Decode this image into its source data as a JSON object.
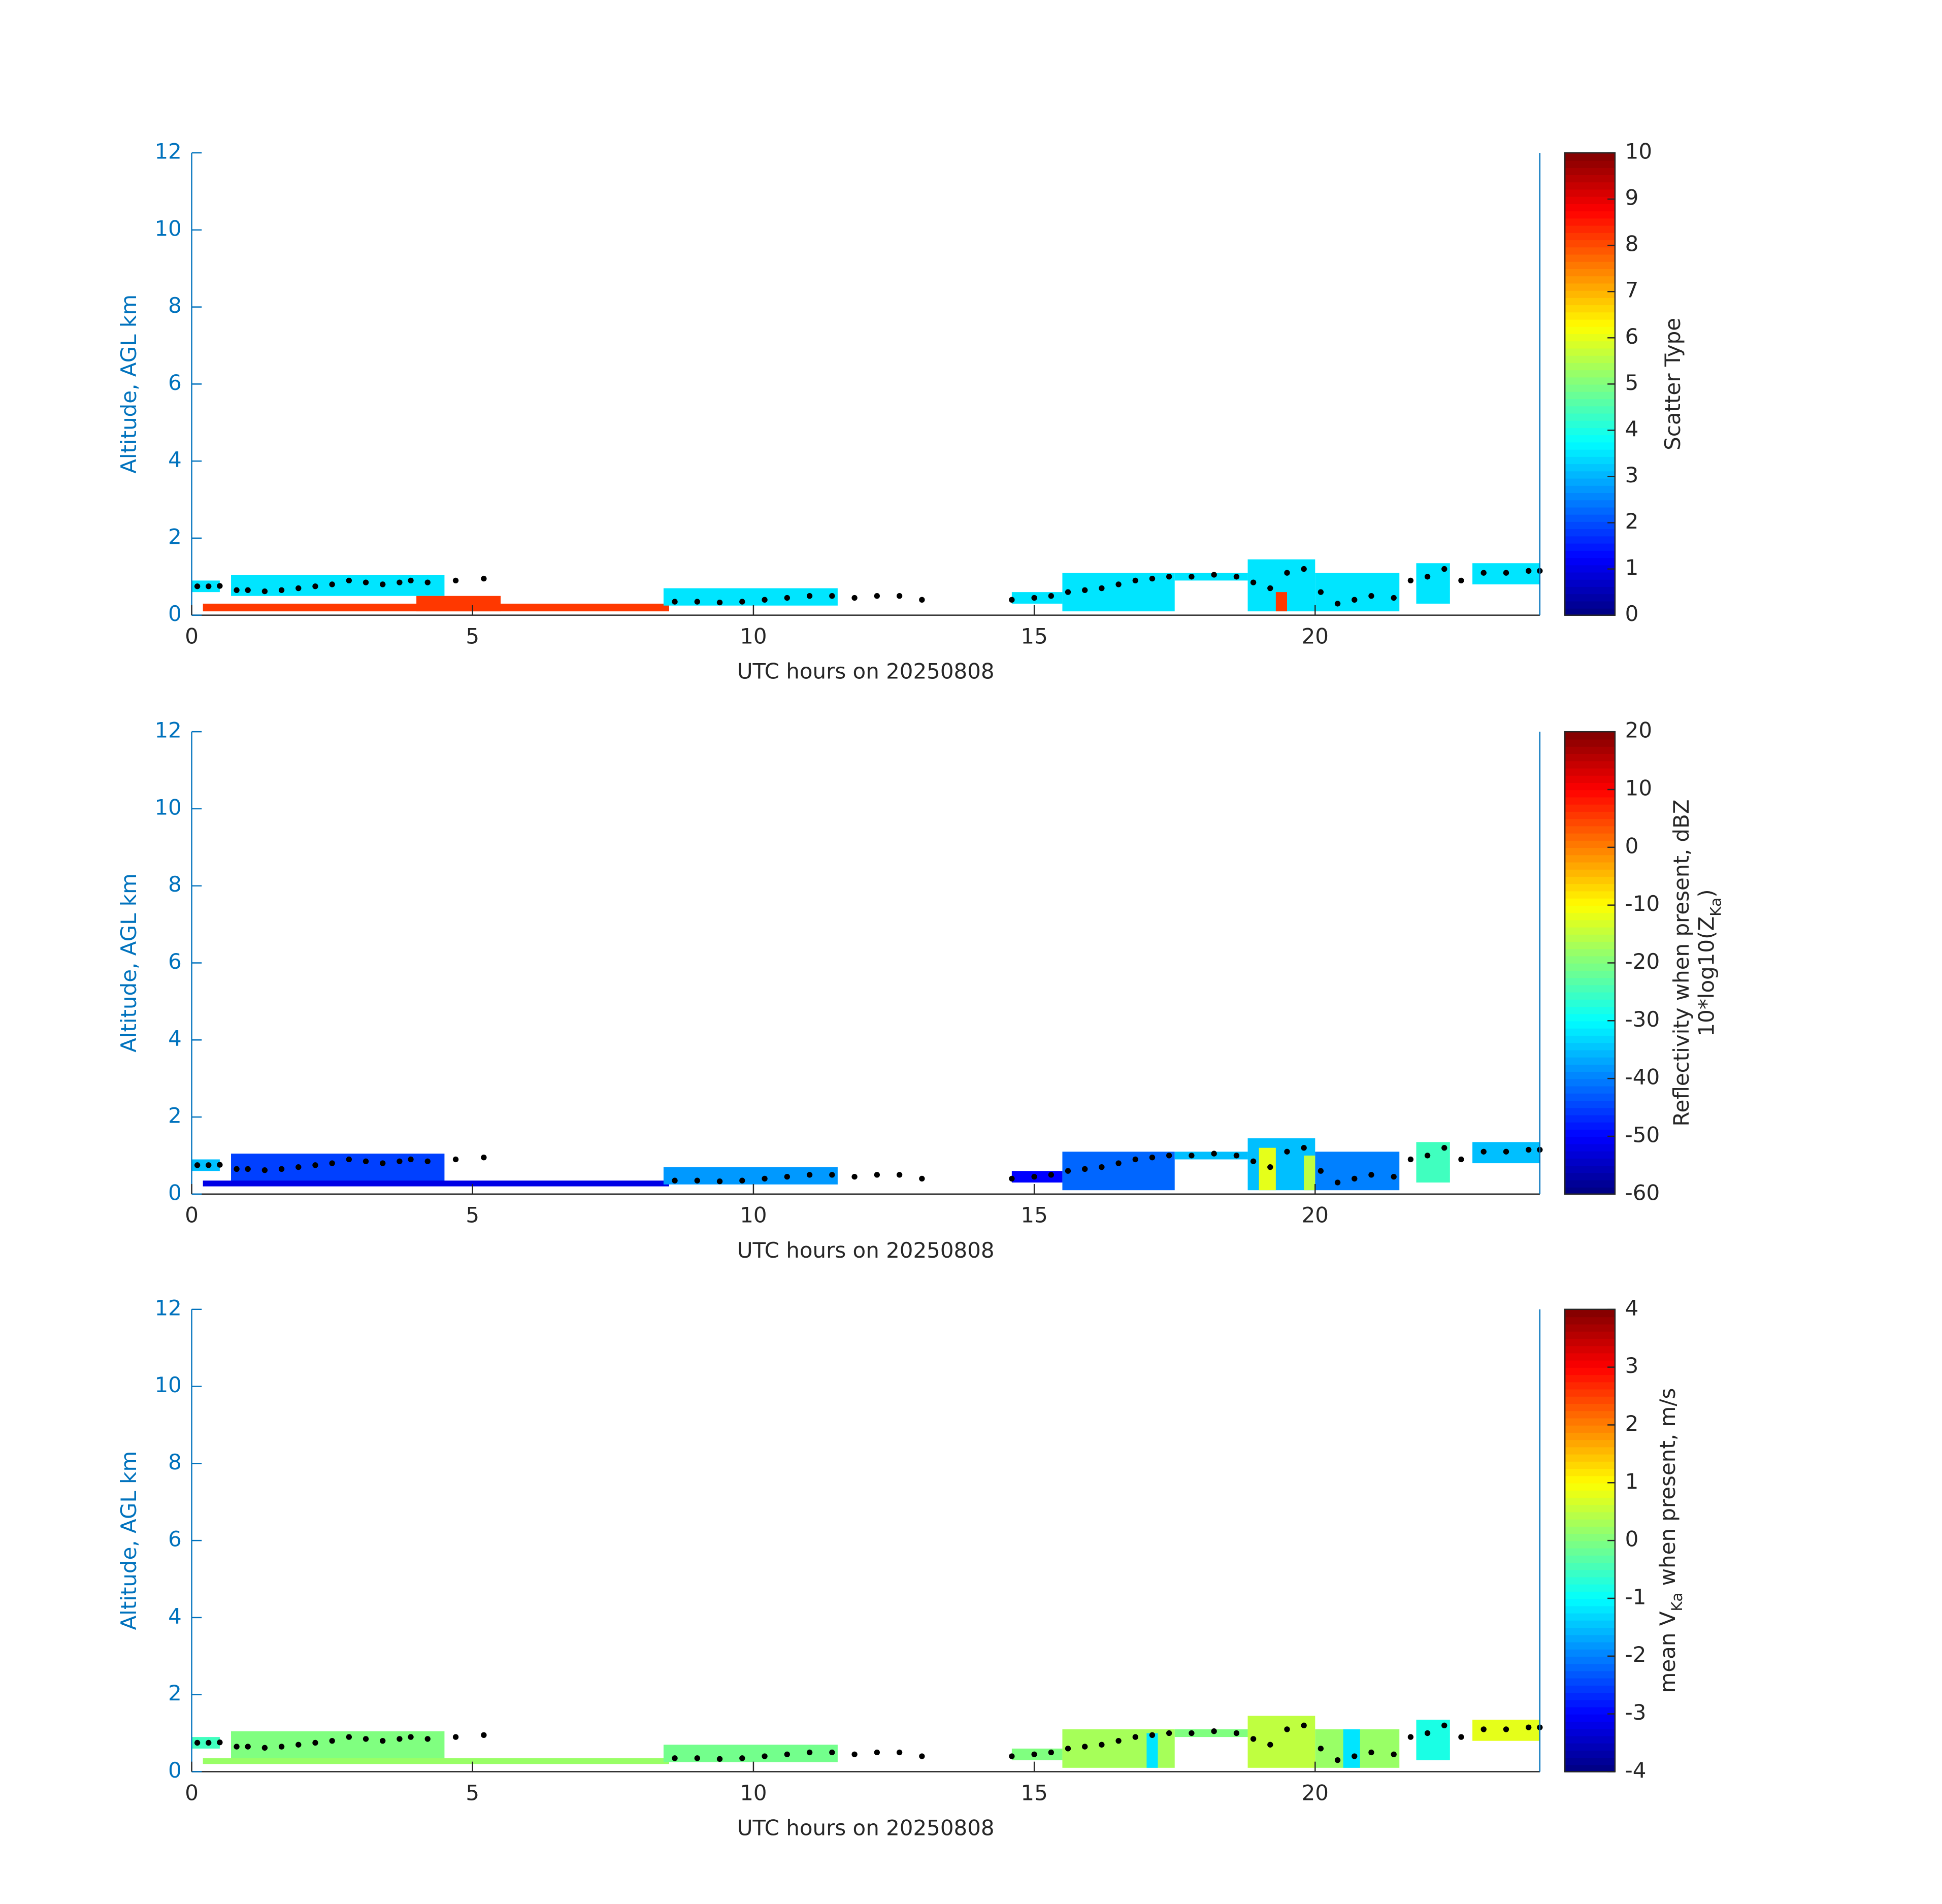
{
  "chart_data": [
    {
      "type": "time-height",
      "ylabel": "Altitude, AGL km",
      "xlabel": "UTC hours on 20250808",
      "xlim": [
        0,
        24
      ],
      "xticks": [
        0,
        5,
        10,
        15,
        20
      ],
      "ylim": [
        0,
        12
      ],
      "yticks": [
        0,
        2,
        4,
        6,
        8,
        10,
        12
      ],
      "colorbar": {
        "label": [
          "Scatter Type"
        ],
        "clim": [
          0,
          10
        ],
        "ticks": [
          0,
          1,
          2,
          3,
          4,
          5,
          6,
          7,
          8,
          9,
          10
        ],
        "colormap": "jet"
      },
      "cells": {
        "x_start": [
          0,
          0.7,
          0.2,
          4.0,
          8.4,
          14.6,
          15.5,
          17.5,
          18.8,
          20.0,
          21.8,
          22.8,
          19.3
        ],
        "x_end": [
          0.5,
          4.5,
          8.5,
          5.5,
          11.5,
          15.5,
          17.5,
          18.8,
          20.0,
          21.5,
          22.4,
          24,
          19.5
        ],
        "y_bottom": [
          0.6,
          0.5,
          0.1,
          0.1,
          0.25,
          0.3,
          0.1,
          0.9,
          0.1,
          0.1,
          0.3,
          0.8,
          0.1
        ],
        "y_top": [
          0.9,
          1.05,
          0.3,
          0.5,
          0.7,
          0.6,
          1.1,
          1.1,
          1.45,
          1.1,
          1.35,
          1.35,
          0.6
        ],
        "values": [
          3.5,
          3.5,
          8.2,
          8.2,
          3.5,
          3.5,
          3.5,
          3.5,
          3.5,
          3.5,
          3.5,
          3.5,
          8.2
        ]
      },
      "points": {
        "color": "#000000",
        "x": [
          0.1,
          0.3,
          0.5,
          0.8,
          1.0,
          1.3,
          1.6,
          1.9,
          2.2,
          2.5,
          2.8,
          3.1,
          3.4,
          3.7,
          3.9,
          4.2,
          4.7,
          5.2,
          8.6,
          9.0,
          9.4,
          9.8,
          10.2,
          10.6,
          11.0,
          11.4,
          11.8,
          12.2,
          12.6,
          13.0,
          14.6,
          15.0,
          15.3,
          15.6,
          15.9,
          16.2,
          16.5,
          16.8,
          17.1,
          17.4,
          17.8,
          18.2,
          18.6,
          18.9,
          19.2,
          19.5,
          19.8,
          20.1,
          20.4,
          20.7,
          21.0,
          21.4,
          21.7,
          22.0,
          22.3,
          22.6,
          23.0,
          23.4,
          23.8,
          24.0
        ],
        "y": [
          0.75,
          0.75,
          0.76,
          0.65,
          0.65,
          0.62,
          0.65,
          0.7,
          0.75,
          0.8,
          0.9,
          0.85,
          0.8,
          0.85,
          0.9,
          0.85,
          0.9,
          0.95,
          0.35,
          0.35,
          0.33,
          0.35,
          0.4,
          0.45,
          0.5,
          0.5,
          0.45,
          0.5,
          0.5,
          0.4,
          0.4,
          0.45,
          0.5,
          0.6,
          0.65,
          0.7,
          0.8,
          0.9,
          0.95,
          1.0,
          1.0,
          1.05,
          1.0,
          0.85,
          0.7,
          1.1,
          1.2,
          0.6,
          0.3,
          0.4,
          0.5,
          0.45,
          0.9,
          1.0,
          1.2,
          0.9,
          1.1,
          1.1,
          1.15,
          1.15
        ]
      }
    },
    {
      "type": "time-height",
      "ylabel": "Altitude, AGL km",
      "xlabel": "UTC hours on 20250808",
      "xlim": [
        0,
        24
      ],
      "xticks": [
        0,
        5,
        10,
        15,
        20
      ],
      "ylim": [
        0,
        12
      ],
      "yticks": [
        0,
        2,
        4,
        6,
        8,
        10,
        12
      ],
      "colorbar": {
        "label": [
          "Reflectivity when present, dBZ",
          "10*log10(Z",
          "Ka",
          ")"
        ],
        "clim": [
          -60,
          20
        ],
        "ticks": [
          -60,
          -50,
          -40,
          -30,
          -20,
          -10,
          0,
          10,
          20
        ],
        "colormap": "jet"
      },
      "cells": {
        "x_start": [
          0,
          0.7,
          0.2,
          8.4,
          14.6,
          15.5,
          17.5,
          18.8,
          19.0,
          20.0,
          21.8,
          22.8,
          19.8
        ],
        "x_end": [
          0.5,
          4.5,
          8.5,
          11.5,
          15.5,
          17.5,
          18.8,
          20.0,
          19.3,
          21.5,
          22.4,
          24,
          20.0
        ],
        "y_bottom": [
          0.6,
          0.3,
          0.2,
          0.25,
          0.3,
          0.1,
          0.9,
          0.1,
          0.1,
          0.1,
          0.3,
          0.8,
          0.1
        ],
        "y_top": [
          0.9,
          1.05,
          0.35,
          0.7,
          0.6,
          1.1,
          1.1,
          1.45,
          1.2,
          1.1,
          1.35,
          1.35,
          1.0
        ],
        "values": [
          -35,
          -45,
          -52,
          -38,
          -50,
          -42,
          -35,
          -35,
          -12,
          -40,
          -25,
          -35,
          -15
        ]
      },
      "points": {
        "color": "#000000",
        "x": [
          0.1,
          0.3,
          0.5,
          0.8,
          1.0,
          1.3,
          1.6,
          1.9,
          2.2,
          2.5,
          2.8,
          3.1,
          3.4,
          3.7,
          3.9,
          4.2,
          4.7,
          5.2,
          8.6,
          9.0,
          9.4,
          9.8,
          10.2,
          10.6,
          11.0,
          11.4,
          11.8,
          12.2,
          12.6,
          13.0,
          14.6,
          15.0,
          15.3,
          15.6,
          15.9,
          16.2,
          16.5,
          16.8,
          17.1,
          17.4,
          17.8,
          18.2,
          18.6,
          18.9,
          19.2,
          19.5,
          19.8,
          20.1,
          20.4,
          20.7,
          21.0,
          21.4,
          21.7,
          22.0,
          22.3,
          22.6,
          23.0,
          23.4,
          23.8,
          24.0
        ],
        "y": [
          0.75,
          0.75,
          0.76,
          0.65,
          0.65,
          0.62,
          0.65,
          0.7,
          0.75,
          0.8,
          0.9,
          0.85,
          0.8,
          0.85,
          0.9,
          0.85,
          0.9,
          0.95,
          0.35,
          0.35,
          0.33,
          0.35,
          0.4,
          0.45,
          0.5,
          0.5,
          0.45,
          0.5,
          0.5,
          0.4,
          0.4,
          0.45,
          0.5,
          0.6,
          0.65,
          0.7,
          0.8,
          0.9,
          0.95,
          1.0,
          1.0,
          1.05,
          1.0,
          0.85,
          0.7,
          1.1,
          1.2,
          0.6,
          0.3,
          0.4,
          0.5,
          0.45,
          0.9,
          1.0,
          1.2,
          0.9,
          1.1,
          1.1,
          1.15,
          1.15
        ]
      }
    },
    {
      "type": "time-height",
      "ylabel": "Altitude, AGL km",
      "xlabel": "UTC hours on 20250808",
      "xlim": [
        0,
        24
      ],
      "xticks": [
        0,
        5,
        10,
        15,
        20
      ],
      "ylim": [
        0,
        12
      ],
      "yticks": [
        0,
        2,
        4,
        6,
        8,
        10,
        12
      ],
      "colorbar": {
        "label": [
          "mean V",
          "Ka",
          " when present, m/s"
        ],
        "clim": [
          -4,
          4
        ],
        "ticks": [
          -4,
          -3,
          -2,
          -1,
          0,
          1,
          2,
          3,
          4
        ],
        "colormap": "jet"
      },
      "cells": {
        "x_start": [
          0,
          0.7,
          0.2,
          8.4,
          14.6,
          15.5,
          17.5,
          18.8,
          20.0,
          21.8,
          22.8,
          17.0,
          20.5
        ],
        "x_end": [
          0.5,
          4.5,
          8.5,
          11.5,
          15.5,
          17.5,
          18.8,
          20.0,
          21.5,
          22.4,
          24,
          17.2,
          20.8
        ],
        "y_bottom": [
          0.6,
          0.3,
          0.2,
          0.25,
          0.3,
          0.1,
          0.9,
          0.1,
          0.1,
          0.3,
          0.8,
          0.1,
          0.1
        ],
        "y_top": [
          0.9,
          1.05,
          0.35,
          0.7,
          0.6,
          1.1,
          1.1,
          1.45,
          1.1,
          1.35,
          1.35,
          1.0,
          1.1
        ],
        "values": [
          -0.5,
          0.0,
          0.2,
          -0.1,
          0.0,
          0.3,
          0.0,
          0.5,
          0.2,
          -0.8,
          0.8,
          -1.2,
          -1.2
        ]
      },
      "points": {
        "color": "#000000",
        "x": [
          0.1,
          0.3,
          0.5,
          0.8,
          1.0,
          1.3,
          1.6,
          1.9,
          2.2,
          2.5,
          2.8,
          3.1,
          3.4,
          3.7,
          3.9,
          4.2,
          4.7,
          5.2,
          8.6,
          9.0,
          9.4,
          9.8,
          10.2,
          10.6,
          11.0,
          11.4,
          11.8,
          12.2,
          12.6,
          13.0,
          14.6,
          15.0,
          15.3,
          15.6,
          15.9,
          16.2,
          16.5,
          16.8,
          17.1,
          17.4,
          17.8,
          18.2,
          18.6,
          18.9,
          19.2,
          19.5,
          19.8,
          20.1,
          20.4,
          20.7,
          21.0,
          21.4,
          21.7,
          22.0,
          22.3,
          22.6,
          23.0,
          23.4,
          23.8,
          24.0
        ],
        "y": [
          0.75,
          0.75,
          0.76,
          0.65,
          0.65,
          0.62,
          0.65,
          0.7,
          0.75,
          0.8,
          0.9,
          0.85,
          0.8,
          0.85,
          0.9,
          0.85,
          0.9,
          0.95,
          0.35,
          0.35,
          0.33,
          0.35,
          0.4,
          0.45,
          0.5,
          0.5,
          0.45,
          0.5,
          0.5,
          0.4,
          0.4,
          0.45,
          0.5,
          0.6,
          0.65,
          0.7,
          0.8,
          0.9,
          0.95,
          1.0,
          1.0,
          1.05,
          1.0,
          0.85,
          0.7,
          1.1,
          1.2,
          0.6,
          0.3,
          0.4,
          0.5,
          0.45,
          0.9,
          1.0,
          1.2,
          0.9,
          1.1,
          1.1,
          1.15,
          1.15
        ]
      }
    }
  ]
}
